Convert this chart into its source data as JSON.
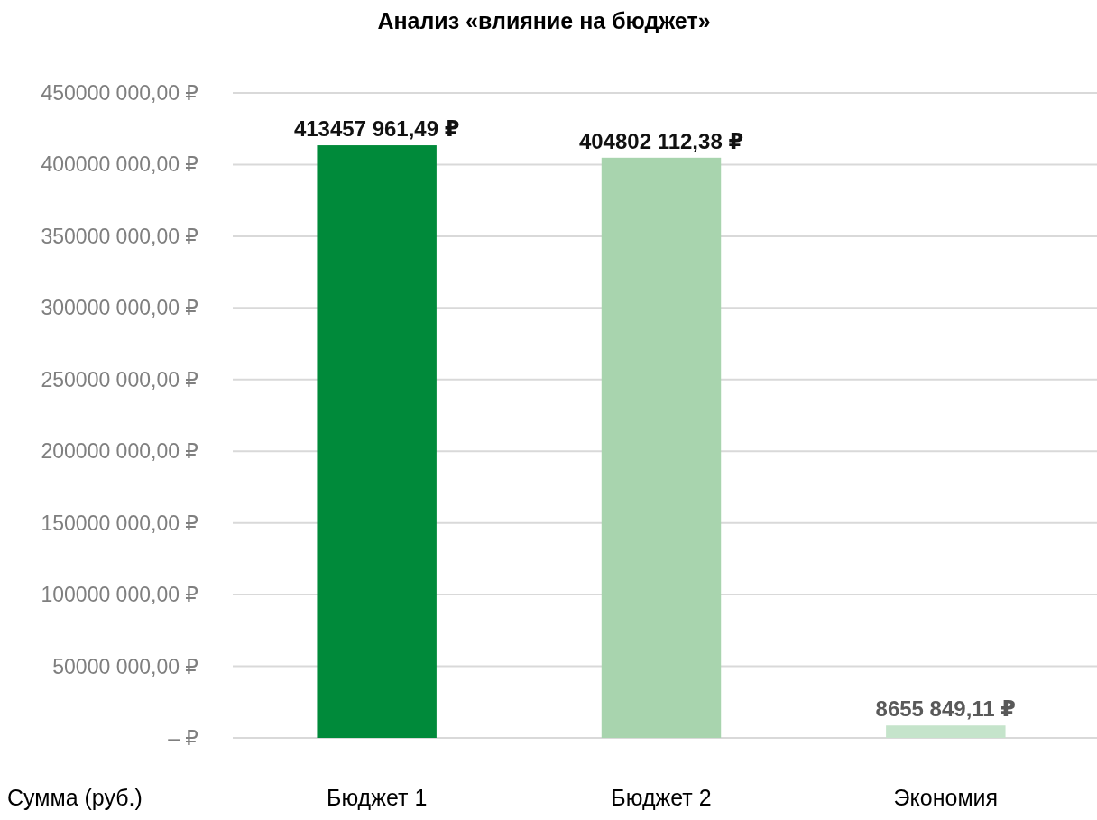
{
  "chart_data": {
    "type": "bar",
    "title": "Анализ «влияние на бюджет»",
    "xlabel": "Сумма (руб.)",
    "categories": [
      "Бюджет 1",
      "Бюджет 2",
      "Экономия"
    ],
    "values": [
      413457961.49,
      404802112.38,
      8655849.11
    ],
    "colors": [
      "#008a3a",
      "#a8d4ae",
      "#c5e4cb"
    ],
    "value_labels": [
      "413457 961,49 ₽",
      "404802 112,38 ₽",
      "8655 849,11 ₽"
    ],
    "ylim": [
      0,
      450000000
    ],
    "yticks": [
      {
        "value": 0,
        "label": "– ₽"
      },
      {
        "value": 50000000,
        "label": "50000 000,00 ₽"
      },
      {
        "value": 100000000,
        "label": "100000 000,00 ₽"
      },
      {
        "value": 150000000,
        "label": "150000 000,00 ₽"
      },
      {
        "value": 200000000,
        "label": "200000 000,00 ₽"
      },
      {
        "value": 250000000,
        "label": "250000 000,00 ₽"
      },
      {
        "value": 300000000,
        "label": "300000 000,00 ₽"
      },
      {
        "value": 350000000,
        "label": "350000 000,00 ₽"
      },
      {
        "value": 400000000,
        "label": "400000 000,00 ₽"
      },
      {
        "value": 450000000,
        "label": "450000 000,00 ₽"
      }
    ],
    "grid": "y"
  }
}
